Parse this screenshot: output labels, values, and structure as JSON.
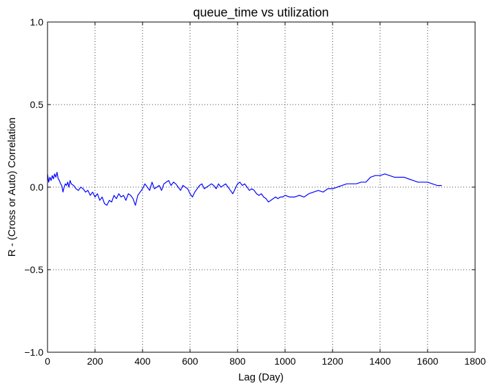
{
  "chart_data": {
    "type": "line",
    "title": "queue_time vs utilization",
    "xlabel": "Lag (Day)",
    "ylabel": "R - (Cross or Auto) Correlation",
    "xlim": [
      0,
      1800
    ],
    "ylim": [
      -1.0,
      1.0
    ],
    "xticks": [
      0,
      200,
      400,
      600,
      800,
      1000,
      1200,
      1400,
      1600,
      1800
    ],
    "xtick_labels": [
      "0",
      "200",
      "400",
      "600",
      "800",
      "1000",
      "1200",
      "1400",
      "1600",
      "1800"
    ],
    "yticks": [
      -1.0,
      -0.5,
      0.0,
      0.5,
      1.0
    ],
    "ytick_labels": [
      "−1.0",
      "−0.5",
      "0.0",
      "0.5",
      "1.0"
    ],
    "grid": true,
    "grid_style": "dotted",
    "line_color": "#0000ff",
    "series": [
      {
        "x": [
          0,
          5,
          10,
          15,
          20,
          25,
          30,
          35,
          40,
          45,
          50,
          55,
          60,
          65,
          70,
          75,
          80,
          85,
          90,
          95,
          100,
          110,
          120,
          130,
          140,
          150,
          160,
          170,
          180,
          190,
          200,
          210,
          220,
          230,
          240,
          250,
          260,
          270,
          280,
          290,
          300,
          310,
          320,
          330,
          340,
          350,
          360,
          370,
          380,
          390,
          400,
          410,
          420,
          430,
          440,
          450,
          460,
          470,
          480,
          490,
          500,
          510,
          520,
          530,
          540,
          550,
          560,
          570,
          580,
          590,
          600,
          610,
          620,
          630,
          640,
          650,
          660,
          670,
          680,
          690,
          700,
          710,
          720,
          730,
          740,
          750,
          760,
          770,
          780,
          790,
          800,
          810,
          820,
          830,
          840,
          850,
          860,
          870,
          880,
          890,
          900,
          910,
          920,
          930,
          940,
          950,
          960,
          970,
          980,
          990,
          1000,
          1020,
          1040,
          1060,
          1080,
          1100,
          1120,
          1140,
          1160,
          1180,
          1200,
          1220,
          1240,
          1260,
          1280,
          1300,
          1320,
          1340,
          1360,
          1380,
          1400,
          1420,
          1440,
          1460,
          1480,
          1500,
          1520,
          1540,
          1560,
          1580,
          1600,
          1620,
          1640,
          1660
        ],
        "y": [
          0.08,
          0.03,
          0.06,
          0.04,
          0.07,
          0.05,
          0.08,
          0.06,
          0.09,
          0.05,
          0.04,
          0.02,
          0.01,
          -0.03,
          0.0,
          0.02,
          0.01,
          0.03,
          0.0,
          0.04,
          0.02,
          0.01,
          -0.01,
          -0.02,
          0.0,
          -0.01,
          -0.03,
          -0.02,
          -0.05,
          -0.03,
          -0.06,
          -0.04,
          -0.08,
          -0.06,
          -0.1,
          -0.11,
          -0.08,
          -0.09,
          -0.05,
          -0.07,
          -0.04,
          -0.06,
          -0.05,
          -0.08,
          -0.04,
          -0.05,
          -0.07,
          -0.11,
          -0.05,
          -0.03,
          -0.01,
          0.02,
          0.0,
          -0.02,
          0.03,
          -0.01,
          0.0,
          0.01,
          -0.02,
          0.02,
          0.03,
          0.04,
          0.01,
          0.03,
          0.02,
          0.0,
          -0.02,
          0.01,
          0.0,
          -0.01,
          -0.04,
          -0.06,
          -0.03,
          -0.01,
          0.01,
          0.02,
          -0.01,
          0.0,
          0.01,
          0.02,
          0.01,
          -0.01,
          0.02,
          0.0,
          0.01,
          0.02,
          0.0,
          -0.02,
          -0.04,
          -0.01,
          0.02,
          0.03,
          0.01,
          0.02,
          0.0,
          -0.02,
          -0.01,
          -0.02,
          -0.04,
          -0.05,
          -0.04,
          -0.06,
          -0.07,
          -0.09,
          -0.08,
          -0.07,
          -0.06,
          -0.07,
          -0.06,
          -0.06,
          -0.05,
          -0.06,
          -0.06,
          -0.05,
          -0.06,
          -0.04,
          -0.03,
          -0.02,
          -0.03,
          -0.01,
          -0.01,
          0.0,
          0.01,
          0.02,
          0.02,
          0.02,
          0.03,
          0.03,
          0.06,
          0.07,
          0.07,
          0.08,
          0.07,
          0.06,
          0.06,
          0.06,
          0.05,
          0.04,
          0.03,
          0.03,
          0.03,
          0.02,
          0.01,
          0.01
        ]
      }
    ]
  }
}
